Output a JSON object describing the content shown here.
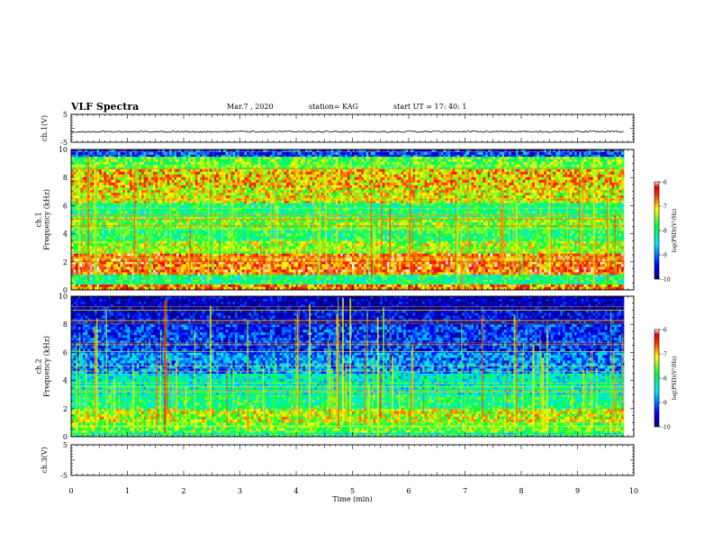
{
  "header": {
    "title": "VLF Spectra",
    "date": "Mar.7 , 2020",
    "station": "station= KAG",
    "start": "start UT = 17: 40: 1"
  },
  "chart_data": [
    {
      "type": "line",
      "panel": "ch1-waveform",
      "ylabel": "ch.1(V)",
      "ylim": [
        -5,
        5
      ],
      "yticks": [
        "5",
        "-5"
      ],
      "xlim": [
        0,
        10
      ],
      "series": [
        {
          "values": [
            -1.2,
            -1.2
          ]
        }
      ]
    },
    {
      "type": "heatmap",
      "panel": "ch1-spectrogram",
      "ylabel": "ch.1\nFrequency (kHz)",
      "ylim": [
        0,
        10
      ],
      "yticks": [
        "0",
        "2",
        "4",
        "6",
        "8",
        "10"
      ],
      "xlim": [
        0,
        9.83
      ],
      "colorbar": {
        "label": "log(PSD)(V²/Hz)",
        "ticks": [
          "-6",
          "-7",
          "-8",
          "-9",
          "-10"
        ],
        "range": [
          -10,
          -6
        ]
      },
      "bands": [
        {
          "f": [
            0,
            0.4
          ],
          "v": -6.8
        },
        {
          "f": [
            0.4,
            1.1
          ],
          "v": -8.0
        },
        {
          "f": [
            1.1,
            2.6
          ],
          "v": -6.6
        },
        {
          "f": [
            2.6,
            3.5
          ],
          "v": -7.4
        },
        {
          "f": [
            3.5,
            4.4
          ],
          "v": -7.9
        },
        {
          "f": [
            4.4,
            5.2
          ],
          "v": -7.5
        },
        {
          "f": [
            5.2,
            6.2
          ],
          "v": -8.0
        },
        {
          "f": [
            6.2,
            7.3
          ],
          "v": -7.2
        },
        {
          "f": [
            7.3,
            8.6
          ],
          "v": -7.0
        },
        {
          "f": [
            8.6,
            9.5
          ],
          "v": -7.6
        },
        {
          "f": [
            9.5,
            10
          ],
          "v": -9.2
        }
      ]
    },
    {
      "type": "heatmap",
      "panel": "ch2-spectrogram",
      "ylabel": "ch.2\nFrequency (kHz)",
      "ylim": [
        0,
        10
      ],
      "yticks": [
        "0",
        "2",
        "4",
        "6",
        "8",
        "10"
      ],
      "xlim": [
        0,
        9.83
      ],
      "colorbar": {
        "label": "log(PSD)(V²/Hz)",
        "ticks": [
          "-6",
          "-7",
          "-8",
          "-9",
          "-10"
        ],
        "range": [
          -10,
          -6
        ]
      },
      "bands": [
        {
          "f": [
            0,
            0.3
          ],
          "v": -8.2
        },
        {
          "f": [
            0.3,
            1.0
          ],
          "v": -7.6
        },
        {
          "f": [
            1.0,
            2.0
          ],
          "v": -7.3
        },
        {
          "f": [
            2.0,
            3.0
          ],
          "v": -8.0
        },
        {
          "f": [
            3.0,
            4.5
          ],
          "v": -8.3
        },
        {
          "f": [
            4.5,
            6.0
          ],
          "v": -8.9
        },
        {
          "f": [
            6.0,
            8.0
          ],
          "v": -9.3
        },
        {
          "f": [
            8.0,
            9.0
          ],
          "v": -9.6
        },
        {
          "f": [
            9.0,
            10
          ],
          "v": -9.8
        }
      ]
    },
    {
      "type": "line",
      "panel": "ch3-waveform",
      "ylabel": "ch.3(V)",
      "ylim": [
        -5,
        5
      ],
      "yticks": [
        "5",
        "-5"
      ],
      "xlim": [
        0,
        10
      ],
      "xlabel": "Time (min)",
      "xticks": [
        "0",
        "1",
        "2",
        "3",
        "4",
        "5",
        "6",
        "7",
        "8",
        "9",
        "10"
      ],
      "series": []
    }
  ]
}
